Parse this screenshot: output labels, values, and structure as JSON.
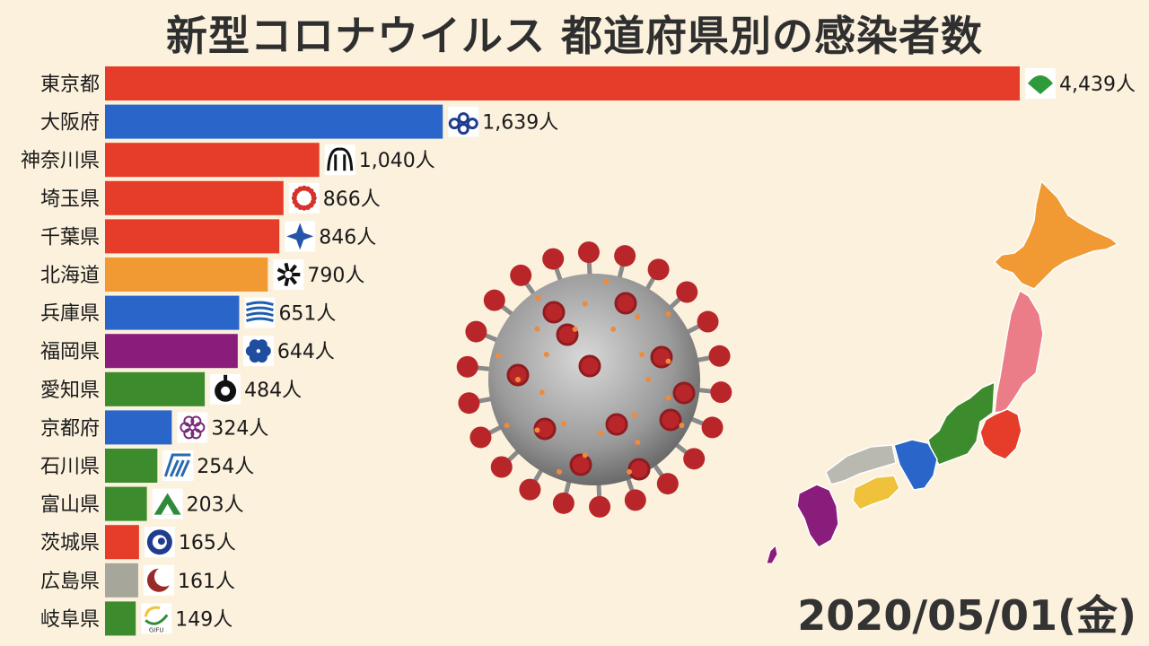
{
  "title": "新型コロナウイルス 都道府県別の感染者数",
  "date": "2020/05/01(金)",
  "value_suffix": "人",
  "colors": {
    "red": "#e63d2a",
    "blue": "#2a66c9",
    "orange": "#f19a33",
    "purple": "#8a1d7c",
    "green": "#3c8c2d",
    "gray": "#a6a69a",
    "yellow": "#f0c23c",
    "pink": "#ea7d88",
    "lightgray": "#b9b9b0"
  },
  "chart_data": {
    "type": "bar",
    "orientation": "horizontal",
    "title": "新型コロナウイルス 都道府県別の感染者数",
    "categories": [
      "東京都",
      "大阪府",
      "神奈川県",
      "埼玉県",
      "千葉県",
      "北海道",
      "兵庫県",
      "福岡県",
      "愛知県",
      "京都府",
      "石川県",
      "富山県",
      "茨城県",
      "広島県",
      "岐阜県"
    ],
    "values": [
      4439,
      1639,
      1040,
      866,
      846,
      790,
      651,
      644,
      484,
      324,
      254,
      203,
      165,
      161,
      149
    ],
    "value_labels": [
      "4,439人",
      "1,639人",
      "1,040人",
      "866人",
      "846人",
      "790人",
      "651人",
      "644人",
      "484人",
      "324人",
      "254人",
      "203人",
      "165人",
      "161人",
      "149人"
    ],
    "bar_colors": [
      "#e63d2a",
      "#2a66c9",
      "#e63d2a",
      "#e63d2a",
      "#e63d2a",
      "#f19a33",
      "#2a66c9",
      "#8a1d7c",
      "#3c8c2d",
      "#2a66c9",
      "#3c8c2d",
      "#3c8c2d",
      "#e63d2a",
      "#a6a69a",
      "#3c8c2d"
    ],
    "icons": [
      "tokyo-emblem-icon",
      "osaka-emblem-icon",
      "kanagawa-emblem-icon",
      "saitama-emblem-icon",
      "chiba-emblem-icon",
      "hokkaido-emblem-icon",
      "hyogo-emblem-icon",
      "fukuoka-emblem-icon",
      "aichi-emblem-icon",
      "kyoto-emblem-icon",
      "ishikawa-emblem-icon",
      "toyama-emblem-icon",
      "ibaraki-emblem-icon",
      "hiroshima-emblem-icon",
      "gifu-emblem-icon"
    ],
    "xlim": [
      0,
      4439
    ],
    "grid": false,
    "legend": "none"
  },
  "gifu_logo_text": "GIFU"
}
